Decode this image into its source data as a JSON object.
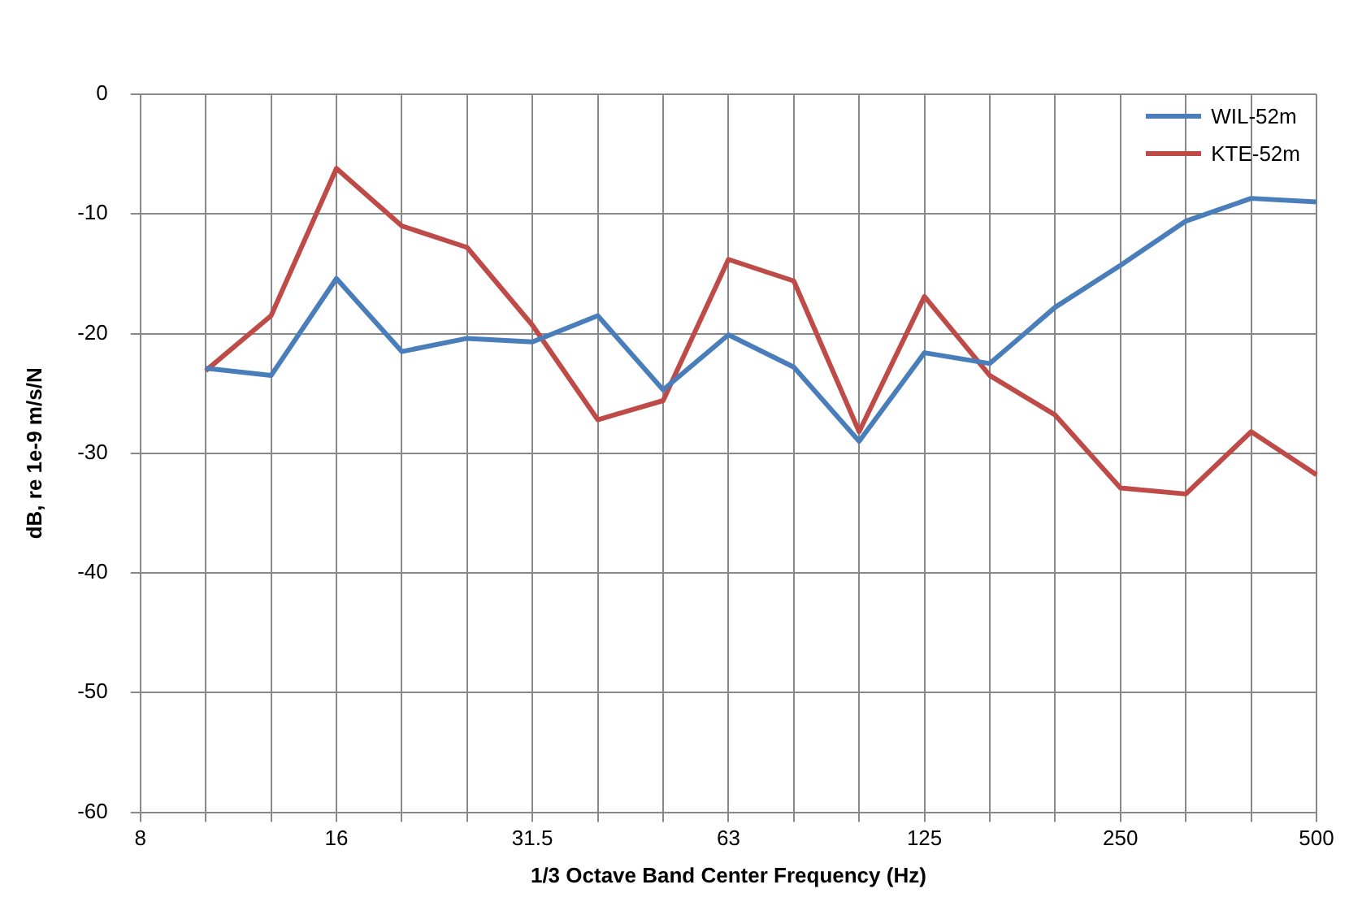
{
  "chart_data": {
    "type": "line",
    "xlabel": "1/3 Octave Band Center Frequency (Hz)",
    "ylabel": "dB, re 1e-9 m/s/N",
    "categories": [
      "8",
      null,
      null,
      "16",
      null,
      null,
      "31.5",
      null,
      null,
      "63",
      null,
      null,
      "125",
      null,
      null,
      "250",
      null,
      null,
      "500"
    ],
    "series": [
      {
        "name": "WIL-52m",
        "color": "#4a7ebb",
        "values": [
          null,
          -22.9,
          -23.5,
          -15.4,
          -21.5,
          -20.4,
          -20.7,
          -18.5,
          -24.7,
          -20.1,
          -22.8,
          -29,
          -21.6,
          -22.5,
          -17.8,
          -14.3,
          -10.6,
          -8.7,
          -9
        ]
      },
      {
        "name": "KTE-52m",
        "color": "#be4b48",
        "values": [
          null,
          -23.1,
          -18.5,
          -6.2,
          -11,
          -12.8,
          -19.3,
          -27.2,
          -25.6,
          -13.8,
          -15.6,
          -28.2,
          -16.9,
          -23.5,
          -26.8,
          -32.9,
          -33.4,
          -28.2,
          -31.8
        ]
      }
    ],
    "ylim": [
      -60,
      0
    ],
    "yticks": [
      -60,
      -50,
      -40,
      -30,
      -20,
      -10,
      0
    ],
    "grid": true,
    "legend": "top right",
    "marker": "none",
    "line_style": "solid"
  }
}
